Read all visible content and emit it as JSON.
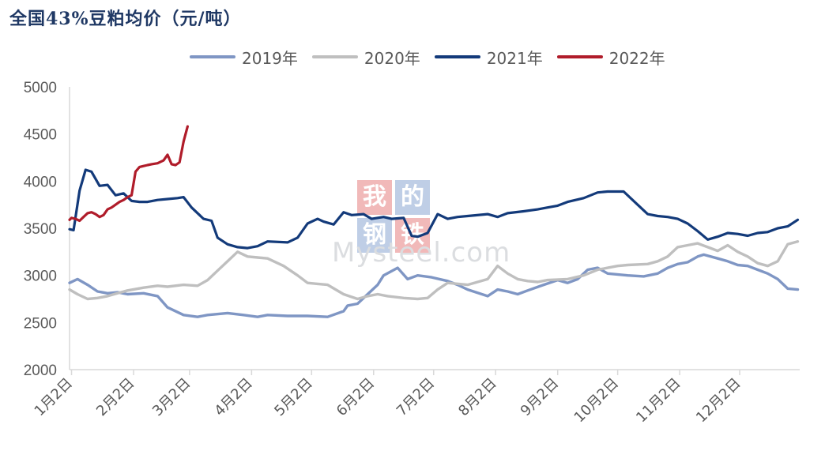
{
  "title": "全国43%豆粕均价（元/吨）",
  "watermark": {
    "chars": [
      "我",
      "的",
      "钢",
      "铁"
    ],
    "brand": "Mysteel.com"
  },
  "chart_data": {
    "type": "line",
    "title": "全国43%豆粕均价（元/吨）",
    "xlabel": "",
    "ylabel": "",
    "ylim": [
      2000,
      5000
    ],
    "yticks": [
      "5000",
      "4500",
      "4000",
      "3500",
      "3000",
      "2500",
      "2000"
    ],
    "ytick_values": [
      5000,
      4500,
      4000,
      3500,
      3000,
      2500,
      2000
    ],
    "xticks": [
      "1月2日",
      "2月2日",
      "3月2日",
      "4月2日",
      "5月2日",
      "6月2日",
      "7月2日",
      "8月2日",
      "9月2日",
      "10月2日",
      "11月2日",
      "12月2日"
    ],
    "xlim": [
      1,
      366
    ],
    "x_unit": "day of year",
    "grid": false,
    "legend": "top",
    "series": [
      {
        "name": "2019年",
        "color": "#7f96c4",
        "x": [
          1,
          5,
          10,
          15,
          20,
          25,
          30,
          38,
          45,
          50,
          58,
          65,
          70,
          80,
          88,
          95,
          100,
          110,
          120,
          130,
          138,
          140,
          145,
          150,
          155,
          158,
          165,
          170,
          175,
          182,
          190,
          195,
          200,
          210,
          215,
          220,
          225,
          230,
          238,
          245,
          250,
          255,
          260,
          265,
          270,
          280,
          288,
          295,
          300,
          305,
          310,
          315,
          318,
          325,
          330,
          335,
          340,
          345,
          350,
          355,
          360,
          365
        ],
        "values": [
          2920,
          2960,
          2900,
          2830,
          2810,
          2820,
          2800,
          2810,
          2780,
          2660,
          2580,
          2560,
          2580,
          2600,
          2580,
          2560,
          2580,
          2570,
          2570,
          2560,
          2620,
          2680,
          2700,
          2800,
          2900,
          3000,
          3080,
          2960,
          3000,
          2980,
          2940,
          2900,
          2850,
          2780,
          2850,
          2830,
          2800,
          2840,
          2900,
          2950,
          2920,
          2960,
          3060,
          3080,
          3020,
          3000,
          2990,
          3020,
          3080,
          3120,
          3140,
          3200,
          3220,
          3180,
          3150,
          3110,
          3100,
          3060,
          3020,
          2960,
          2860,
          2850
        ]
      },
      {
        "name": "2020年",
        "color": "#bfbfbf",
        "x": [
          1,
          5,
          10,
          15,
          20,
          25,
          30,
          38,
          45,
          50,
          58,
          65,
          70,
          75,
          80,
          85,
          90,
          95,
          100,
          108,
          115,
          120,
          125,
          130,
          138,
          145,
          150,
          155,
          160,
          168,
          175,
          180,
          185,
          190,
          200,
          210,
          215,
          220,
          225,
          230,
          235,
          240,
          250,
          258,
          265,
          270,
          275,
          280,
          290,
          295,
          300,
          305,
          310,
          315,
          320,
          325,
          330,
          335,
          340,
          345,
          350,
          355,
          360,
          365
        ],
        "values": [
          2850,
          2800,
          2750,
          2760,
          2780,
          2810,
          2840,
          2870,
          2890,
          2880,
          2900,
          2890,
          2950,
          3050,
          3150,
          3250,
          3200,
          3190,
          3180,
          3100,
          3000,
          2920,
          2910,
          2900,
          2800,
          2750,
          2780,
          2800,
          2780,
          2760,
          2750,
          2760,
          2850,
          2920,
          2900,
          2960,
          3100,
          3020,
          2960,
          2940,
          2930,
          2950,
          2960,
          3000,
          3060,
          3080,
          3100,
          3110,
          3120,
          3150,
          3200,
          3300,
          3320,
          3340,
          3300,
          3260,
          3320,
          3250,
          3200,
          3130,
          3100,
          3150,
          3330,
          3360
        ]
      },
      {
        "name": "2021年",
        "color": "#133a7a",
        "x": [
          1,
          3,
          6,
          9,
          12,
          16,
          20,
          24,
          28,
          32,
          36,
          40,
          45,
          50,
          55,
          58,
          62,
          68,
          72,
          75,
          80,
          85,
          90,
          95,
          100,
          110,
          115,
          120,
          125,
          128,
          133,
          138,
          142,
          148,
          152,
          158,
          162,
          168,
          172,
          175,
          180,
          185,
          190,
          195,
          200,
          210,
          215,
          220,
          228,
          235,
          240,
          245,
          250,
          258,
          265,
          270,
          278,
          285,
          290,
          295,
          300,
          305,
          310,
          315,
          320,
          325,
          330,
          335,
          340,
          345,
          350,
          355,
          360,
          365
        ],
        "values": [
          3490,
          3480,
          3900,
          4120,
          4100,
          3950,
          3960,
          3850,
          3870,
          3790,
          3780,
          3780,
          3800,
          3810,
          3820,
          3830,
          3720,
          3600,
          3580,
          3400,
          3330,
          3300,
          3290,
          3310,
          3360,
          3350,
          3400,
          3550,
          3600,
          3570,
          3540,
          3670,
          3640,
          3650,
          3600,
          3620,
          3600,
          3610,
          3420,
          3410,
          3450,
          3650,
          3600,
          3620,
          3630,
          3650,
          3620,
          3660,
          3680,
          3700,
          3720,
          3740,
          3780,
          3820,
          3880,
          3890,
          3890,
          3750,
          3650,
          3630,
          3620,
          3600,
          3550,
          3470,
          3380,
          3410,
          3450,
          3440,
          3420,
          3450,
          3460,
          3500,
          3520,
          3590
        ]
      },
      {
        "name": "2022年",
        "color": "#b01c2a",
        "x": [
          1,
          2,
          4,
          6,
          8,
          10,
          12,
          14,
          16,
          18,
          20,
          22,
          24,
          26,
          28,
          30,
          32,
          34,
          36,
          38,
          40,
          42,
          45,
          48,
          50,
          52,
          54,
          56,
          58,
          60
        ],
        "values": [
          3590,
          3610,
          3600,
          3580,
          3620,
          3660,
          3670,
          3650,
          3620,
          3640,
          3700,
          3720,
          3750,
          3780,
          3800,
          3830,
          3850,
          4100,
          4150,
          4160,
          4170,
          4180,
          4190,
          4220,
          4280,
          4180,
          4170,
          4200,
          4420,
          4580
        ]
      }
    ]
  }
}
